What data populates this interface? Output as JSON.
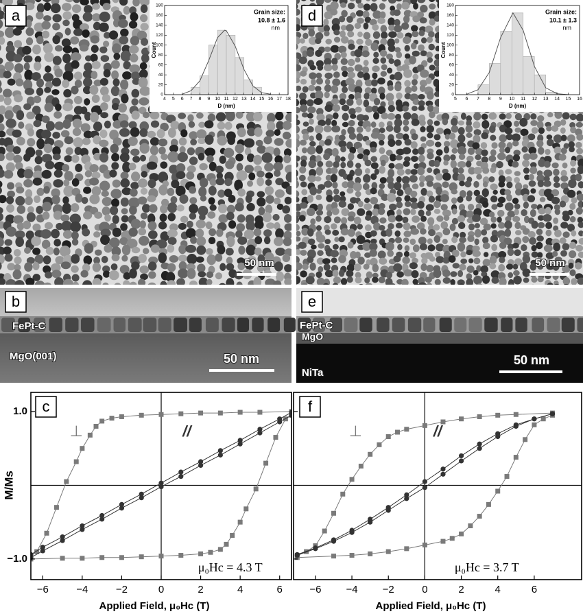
{
  "micrographs": [
    {
      "label": "a",
      "scale_bar": "50 nm"
    },
    {
      "label": "d",
      "scale_bar": "50 nm"
    },
    {
      "label": "b",
      "scale_bar": "50 nm",
      "layers": [
        "FePt-C",
        "MgO(001)"
      ]
    },
    {
      "label": "e",
      "scale_bar": "50 nm",
      "layers": [
        "FePt-C",
        "MgO",
        "NiTa"
      ]
    }
  ],
  "chart_data": [
    {
      "type": "histogram",
      "title": "Grain size:",
      "annotations": [
        "10.8 ± 1.6",
        "nm"
      ],
      "x_label": "D (nm)",
      "y_label": "Count",
      "bins": [
        7,
        8,
        9,
        10,
        11,
        12,
        13,
        14,
        15
      ],
      "values": [
        15,
        38,
        100,
        130,
        120,
        75,
        30,
        15
      ],
      "color": "#dcdcdc",
      "fit": {
        "color": "#555555",
        "x": [
          6,
          7,
          8,
          9,
          10,
          10.8,
          11,
          12,
          13,
          14,
          15,
          16
        ],
        "values": [
          1,
          8,
          28,
          69,
          115,
          130,
          129,
          98,
          51,
          18,
          4,
          1
        ]
      },
      "xlim": [
        4,
        18
      ],
      "xticks": [
        4,
        5,
        6,
        7,
        8,
        9,
        10,
        11,
        12,
        13,
        14,
        15,
        16,
        17,
        18
      ],
      "ylim": [
        0,
        180
      ],
      "yticks": [
        0,
        20,
        40,
        60,
        80,
        100,
        120,
        140,
        160,
        180
      ]
    },
    {
      "type": "histogram",
      "title": "Grain size:",
      "annotations": [
        "10.1 ± 1.3",
        "nm"
      ],
      "x_label": "D (nm)",
      "y_label": "Count",
      "bins": [
        7,
        8,
        9,
        10,
        11,
        12,
        13,
        14
      ],
      "values": [
        20,
        63,
        128,
        165,
        77,
        40,
        5
      ],
      "color": "#dcdcdc",
      "fit": {
        "color": "#555555",
        "x": [
          6,
          7,
          8,
          9,
          10.1,
          11,
          12,
          13,
          14,
          15
        ],
        "values": [
          1,
          10,
          45,
          115,
          165,
          130,
          57,
          14,
          2,
          0
        ]
      },
      "xlim": [
        5,
        16
      ],
      "xticks": [
        5,
        6,
        7,
        8,
        9,
        10,
        11,
        12,
        13,
        14,
        15,
        16
      ],
      "ylim": [
        0,
        180
      ],
      "yticks": [
        0,
        20,
        40,
        60,
        80,
        100,
        120,
        140,
        160,
        180
      ]
    },
    {
      "type": "line",
      "label": "c",
      "annotation": "μ₀Hc = 4.3 T",
      "x_label": "Applied Field, μ₀Hc  (T)",
      "y_label": "M/Ms",
      "show_ytick_labels": true,
      "xlim": [
        -6.6,
        6.6
      ],
      "xticks": [
        {
          "value": -6,
          "label": "−6"
        },
        {
          "value": -4,
          "label": "−4"
        },
        {
          "value": -2,
          "label": "−2"
        },
        0,
        2,
        4,
        6
      ],
      "ylim": [
        -1.28,
        1.26
      ],
      "yticks": [
        {
          "value": -1,
          "label": "−1.0"
        },
        {
          "value": 1,
          "label": "1.0"
        }
      ],
      "series": [
        {
          "name": "⊥",
          "color": "#7a7a7a",
          "marker": "square",
          "branches": [
            {
              "x": [
                6.6,
                5,
                4,
                3,
                2,
                1,
                0,
                -1,
                -2,
                -2.5,
                -3,
                -3.3,
                -3.6,
                -4,
                -4.3,
                -4.8,
                -5.3,
                -5.8,
                -6.3,
                -6.6
              ],
              "values": [
                1,
                0.99,
                0.99,
                0.98,
                0.98,
                0.97,
                0.96,
                0.95,
                0.93,
                0.91,
                0.87,
                0.8,
                0.68,
                0.5,
                0.32,
                0.05,
                -0.3,
                -0.65,
                -0.9,
                -0.95
              ]
            },
            {
              "x": [
                -6.6,
                -5,
                -4,
                -3,
                -2,
                -1,
                0,
                1,
                2,
                2.5,
                3,
                3.3,
                3.6,
                4,
                4.3,
                4.8,
                5.3,
                5.8,
                6.3,
                6.6
              ],
              "values": [
                -1,
                -0.99,
                -0.99,
                -0.98,
                -0.98,
                -0.97,
                -0.96,
                -0.95,
                -0.93,
                -0.91,
                -0.87,
                -0.8,
                -0.68,
                -0.5,
                -0.32,
                -0.05,
                0.3,
                0.65,
                0.9,
                0.95
              ]
            }
          ]
        },
        {
          "name": "//",
          "color": "#333333",
          "marker": "circle",
          "branches": [
            {
              "x": [
                -6.6,
                -6,
                -5,
                -4,
                -3,
                -2,
                -1,
                0,
                1,
                2,
                3,
                4,
                5,
                6,
                6.6
              ],
              "values": [
                -0.98,
                -0.89,
                -0.75,
                -0.6,
                -0.46,
                -0.31,
                -0.17,
                -0.02,
                0.12,
                0.27,
                0.41,
                0.56,
                0.71,
                0.86,
                0.95
              ]
            },
            {
              "x": [
                6.6,
                6,
                5,
                4,
                3,
                2,
                1,
                0,
                -1,
                -2,
                -3,
                -4,
                -5,
                -6,
                -6.6
              ],
              "values": [
                0.99,
                0.9,
                0.76,
                0.61,
                0.47,
                0.32,
                0.18,
                0.03,
                -0.12,
                -0.26,
                -0.41,
                -0.55,
                -0.7,
                -0.84,
                -0.94
              ]
            }
          ]
        }
      ]
    },
    {
      "type": "line",
      "label": "f",
      "annotation": "μ₀Hc = 3.7 T",
      "x_label": "Applied Field, μ₀Hc  (T)",
      "show_ytick_labels": false,
      "xlim": [
        -7.2,
        8.6
      ],
      "xticks": [
        {
          "value": -6,
          "label": "−6"
        },
        {
          "value": -4,
          "label": "−4"
        },
        {
          "value": -2,
          "label": "−2"
        },
        0,
        2,
        4,
        6
      ],
      "ylim": [
        -1.28,
        1.26
      ],
      "yticks": [
        -1,
        1
      ],
      "series": [
        {
          "name": "⊥",
          "color": "#7a7a7a",
          "marker": "square",
          "branches": [
            {
              "x": [
                7,
                5,
                4,
                3,
                2,
                1,
                0,
                -1,
                -1.5,
                -2,
                -2.5,
                -3,
                -3.5,
                -4,
                -4.5,
                -5,
                -5.5,
                -6,
                -6.5,
                -7
              ],
              "values": [
                0.98,
                0.96,
                0.95,
                0.93,
                0.9,
                0.86,
                0.81,
                0.76,
                0.72,
                0.66,
                0.55,
                0.42,
                0.26,
                0.08,
                -0.12,
                -0.38,
                -0.62,
                -0.82,
                -0.9,
                -0.95
              ]
            },
            {
              "x": [
                -7,
                -5,
                -4,
                -3,
                -2,
                -1,
                0,
                1,
                1.5,
                2,
                2.5,
                3,
                3.5,
                4,
                4.5,
                5,
                5.5,
                6,
                6.5,
                7
              ],
              "values": [
                -0.98,
                -0.96,
                -0.95,
                -0.93,
                -0.9,
                -0.86,
                -0.81,
                -0.76,
                -0.72,
                -0.66,
                -0.55,
                -0.42,
                -0.26,
                -0.08,
                0.12,
                0.38,
                0.62,
                0.82,
                0.9,
                0.95
              ]
            }
          ]
        },
        {
          "name": "//",
          "color": "#333333",
          "marker": "circle",
          "branches": [
            {
              "x": [
                -7,
                -6,
                -5,
                -4,
                -3,
                -2,
                -1,
                0,
                1,
                2,
                3,
                4,
                5,
                6,
                7
              ],
              "values": [
                -0.95,
                -0.86,
                -0.76,
                -0.64,
                -0.5,
                -0.34,
                -0.18,
                -0.03,
                0.15,
                0.33,
                0.5,
                0.66,
                0.8,
                0.9,
                0.97
              ]
            },
            {
              "x": [
                7,
                6,
                5,
                4,
                3,
                2,
                1,
                0,
                -1,
                -2,
                -3,
                -4,
                -5,
                -6,
                -7
              ],
              "values": [
                0.97,
                0.9,
                0.82,
                0.7,
                0.56,
                0.4,
                0.22,
                0.05,
                -0.13,
                -0.3,
                -0.46,
                -0.61,
                -0.74,
                -0.85,
                -0.94
              ]
            }
          ]
        }
      ]
    }
  ]
}
